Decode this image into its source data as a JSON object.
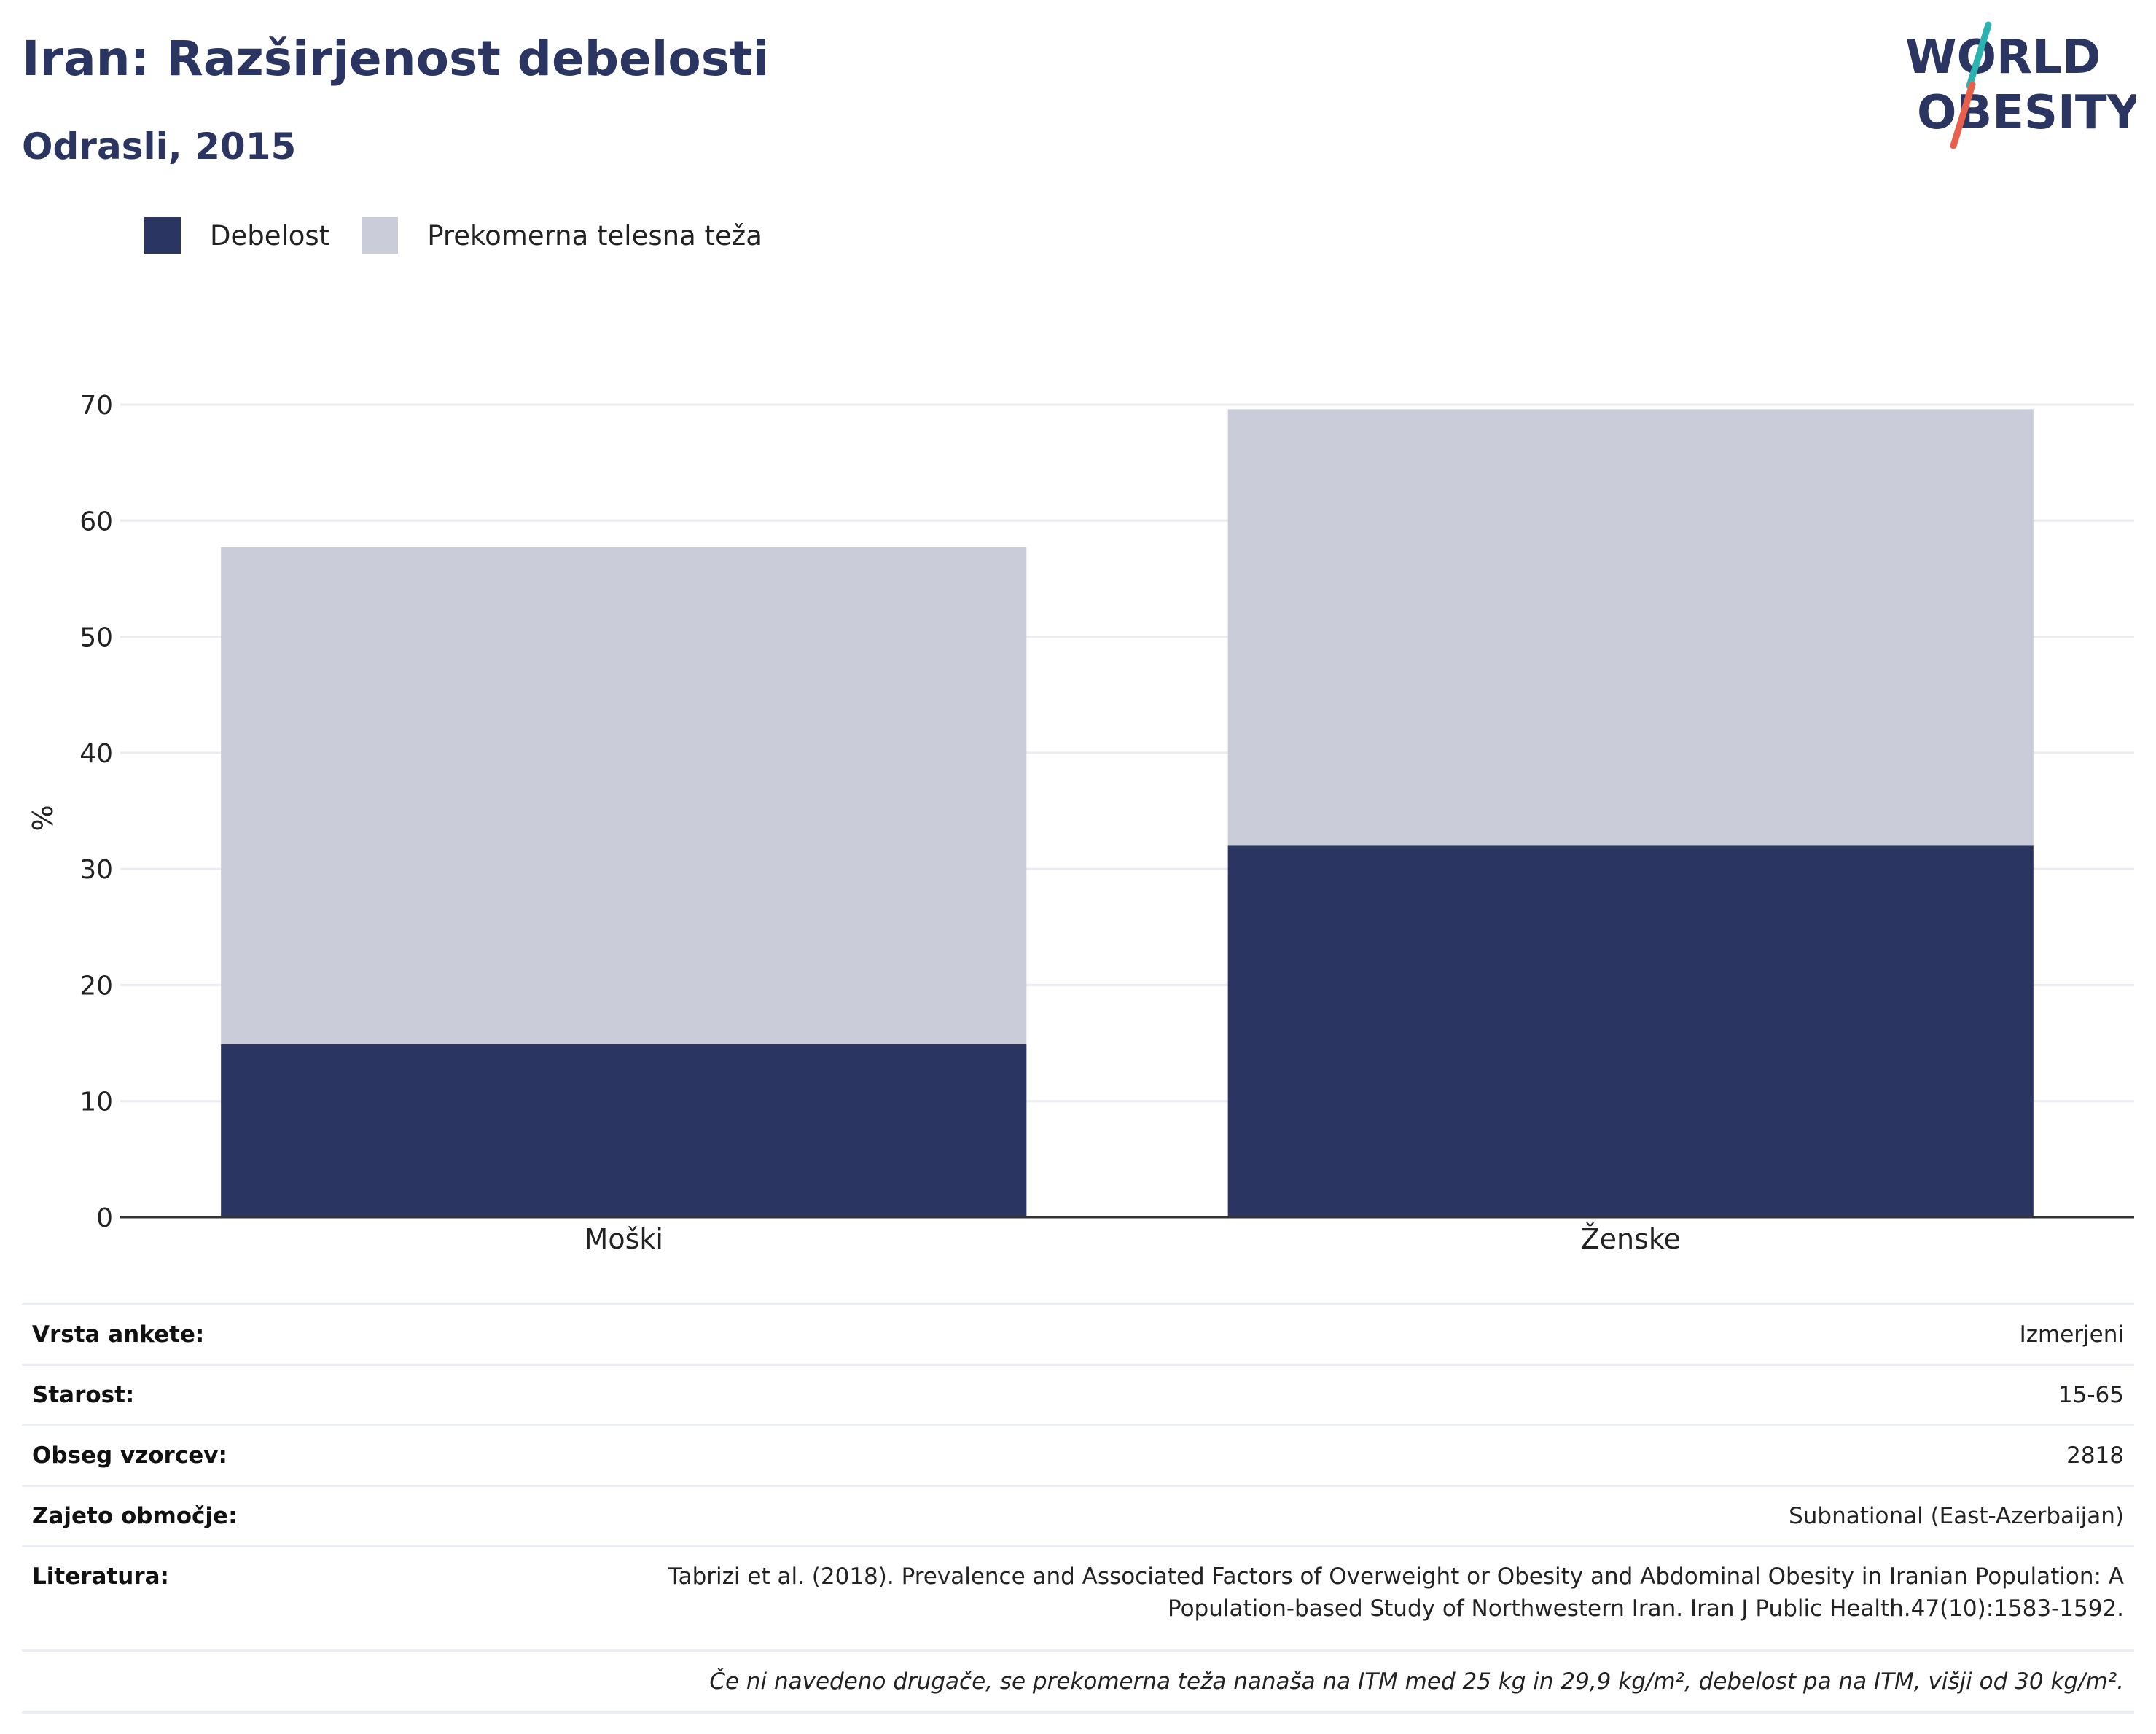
{
  "header": {
    "title": "Iran: Razširjenost debelosti",
    "subtitle": "Odrasli, 2015"
  },
  "logo": {
    "line1": "WORLD",
    "line2": "OBESITY",
    "colors": {
      "text": "#2b3562",
      "accent_teal": "#2bb3b1",
      "accent_red": "#e8604c"
    }
  },
  "legend": [
    {
      "label": "Debelost",
      "color": "#2b3562"
    },
    {
      "label": "Prekomerna telesna teža",
      "color": "#cacdd9"
    }
  ],
  "chart_data": {
    "type": "bar",
    "stacked": true,
    "categories": [
      "Moški",
      "Ženske"
    ],
    "series": [
      {
        "name": "Debelost",
        "color": "#2b3562",
        "values": [
          14.9,
          32.0
        ]
      },
      {
        "name": "Prekomerna telesna teža",
        "color": "#cacdd9",
        "values": [
          42.8,
          37.6
        ]
      }
    ],
    "ylabel": "%",
    "ylim": [
      0,
      70
    ],
    "yticks": [
      0,
      10,
      20,
      30,
      40,
      50,
      60,
      70
    ],
    "grid": true,
    "legend_position": "top-left"
  },
  "info": {
    "survey_type": {
      "label": "Vrsta ankete:",
      "value": "Izmerjeni"
    },
    "age": {
      "label": "Starost:",
      "value": "15-65"
    },
    "sample_size": {
      "label": "Obseg vzorcev:",
      "value": "2818"
    },
    "area": {
      "label": "Zajeto območje:",
      "value": "Subnational (East-Azerbaijan)"
    },
    "reference": {
      "label": "Literatura:",
      "line1": "Tabrizi et al. (2018). Prevalence and Associated Factors of Overweight or Obesity and Abdominal Obesity in Iranian Population: A",
      "line2": "Population-based Study of Northwestern Iran. Iran J Public Health.47(10):1583-1592."
    },
    "note": "Če ni navedeno drugače, se prekomerna teža nanaša na ITM med 25 kg in 29,9 kg/m², debelost pa na ITM, višji od 30 kg/m²."
  }
}
